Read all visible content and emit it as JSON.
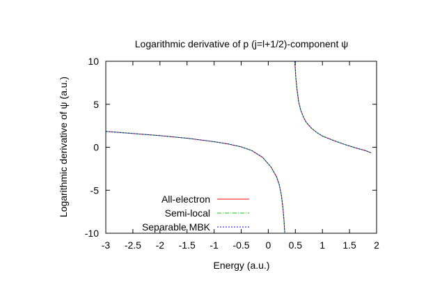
{
  "chart_data": {
    "type": "line",
    "title": "Logarithmic derivative of p (j=l+1/2)-component ψ",
    "xlabel": "Energy (a.u.)",
    "ylabel": "Logarithmic derivative of ψ (a.u.)",
    "xlim": [
      -3,
      2
    ],
    "ylim": [
      -10,
      10
    ],
    "xticks": [
      "-3",
      "-2.5",
      "-2",
      "-1.5",
      "-1",
      "-0.5",
      "0",
      "0.5",
      "1",
      "1.5",
      "2"
    ],
    "yticks": [
      "-10",
      "-5",
      "0",
      "5",
      "10"
    ],
    "grid": false,
    "legend_position": "bottom-left",
    "series": [
      {
        "name": "All-electron",
        "color": "#ff0000",
        "dash": "solid",
        "segments": [
          [
            [
              -3,
              1.85
            ],
            [
              -2.5,
              1.6
            ],
            [
              -2,
              1.35
            ],
            [
              -1.5,
              1.05
            ],
            [
              -1,
              0.65
            ],
            [
              -0.75,
              0.4
            ],
            [
              -0.5,
              0.05
            ],
            [
              -0.3,
              -0.4
            ],
            [
              -0.1,
              -1.2
            ],
            [
              0.05,
              -2.3
            ],
            [
              0.15,
              -3.4
            ],
            [
              0.2,
              -4.3
            ],
            [
              0.24,
              -5.5
            ],
            [
              0.27,
              -7.0
            ],
            [
              0.29,
              -8.5
            ],
            [
              0.305,
              -10
            ]
          ],
          [
            [
              0.49,
              10
            ],
            [
              0.51,
              8.0
            ],
            [
              0.53,
              6.8
            ],
            [
              0.56,
              5.3
            ],
            [
              0.6,
              4.3
            ],
            [
              0.65,
              3.5
            ],
            [
              0.7,
              2.9
            ],
            [
              0.8,
              2.2
            ],
            [
              0.9,
              1.7
            ],
            [
              1.0,
              1.3
            ],
            [
              1.2,
              0.8
            ],
            [
              1.4,
              0.35
            ],
            [
              1.6,
              -0.05
            ],
            [
              1.8,
              -0.4
            ],
            [
              1.9,
              -0.65
            ]
          ]
        ]
      },
      {
        "name": "Semi-local",
        "color": "#00cc00",
        "dash": "dashdot",
        "segments": [
          [
            [
              -3,
              1.85
            ],
            [
              -2.5,
              1.6
            ],
            [
              -2,
              1.35
            ],
            [
              -1.5,
              1.05
            ],
            [
              -1,
              0.65
            ],
            [
              -0.75,
              0.4
            ],
            [
              -0.5,
              0.05
            ],
            [
              -0.3,
              -0.4
            ],
            [
              -0.1,
              -1.2
            ],
            [
              0.05,
              -2.3
            ],
            [
              0.15,
              -3.4
            ],
            [
              0.2,
              -4.3
            ],
            [
              0.24,
              -5.5
            ],
            [
              0.27,
              -7.0
            ],
            [
              0.29,
              -8.5
            ],
            [
              0.305,
              -10
            ]
          ],
          [
            [
              0.49,
              10
            ],
            [
              0.51,
              8.0
            ],
            [
              0.53,
              6.8
            ],
            [
              0.56,
              5.3
            ],
            [
              0.6,
              4.3
            ],
            [
              0.65,
              3.5
            ],
            [
              0.7,
              2.9
            ],
            [
              0.8,
              2.2
            ],
            [
              0.9,
              1.7
            ],
            [
              1.0,
              1.3
            ],
            [
              1.2,
              0.8
            ],
            [
              1.4,
              0.35
            ],
            [
              1.6,
              -0.05
            ],
            [
              1.8,
              -0.4
            ],
            [
              1.9,
              -0.65
            ]
          ]
        ]
      },
      {
        "name": "Separable MBK",
        "color": "#0000ff",
        "dash": "dotted",
        "segments": [
          [
            [
              -3,
              1.85
            ],
            [
              -2.5,
              1.6
            ],
            [
              -2,
              1.35
            ],
            [
              -1.5,
              1.05
            ],
            [
              -1,
              0.65
            ],
            [
              -0.75,
              0.4
            ],
            [
              -0.5,
              0.05
            ],
            [
              -0.3,
              -0.4
            ],
            [
              -0.1,
              -1.2
            ],
            [
              0.05,
              -2.3
            ],
            [
              0.15,
              -3.4
            ],
            [
              0.2,
              -4.3
            ],
            [
              0.24,
              -5.5
            ],
            [
              0.27,
              -7.0
            ],
            [
              0.29,
              -8.5
            ],
            [
              0.305,
              -10
            ]
          ],
          [
            [
              0.49,
              10
            ],
            [
              0.51,
              8.0
            ],
            [
              0.53,
              6.8
            ],
            [
              0.56,
              5.3
            ],
            [
              0.6,
              4.3
            ],
            [
              0.65,
              3.5
            ],
            [
              0.7,
              2.9
            ],
            [
              0.8,
              2.2
            ],
            [
              0.9,
              1.7
            ],
            [
              1.0,
              1.3
            ],
            [
              1.2,
              0.8
            ],
            [
              1.4,
              0.35
            ],
            [
              1.6,
              -0.05
            ],
            [
              1.8,
              -0.4
            ],
            [
              1.9,
              -0.65
            ]
          ]
        ]
      }
    ]
  }
}
